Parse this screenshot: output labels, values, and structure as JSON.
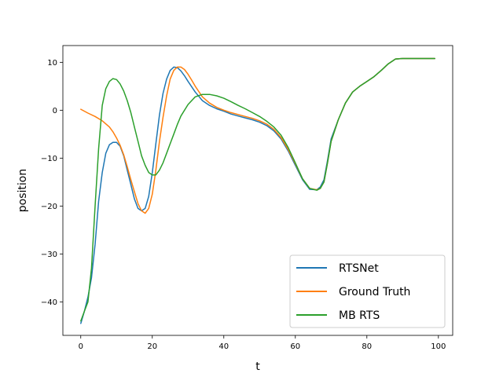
{
  "chart_data": {
    "type": "line",
    "title": "",
    "xlabel": "t",
    "ylabel": "position",
    "xlim": [
      -5,
      104
    ],
    "ylim": [
      -47,
      13.5
    ],
    "xticks": [
      0,
      20,
      40,
      60,
      80,
      100
    ],
    "yticks": [
      -40,
      -30,
      -20,
      -10,
      0,
      10
    ],
    "grid": false,
    "legend_position": "lower-right",
    "series": [
      {
        "name": "RTSNet",
        "color": "#1f77b4",
        "x": [
          0,
          1,
          2,
          3,
          4,
          5,
          6,
          7,
          8,
          9,
          10,
          11,
          12,
          13,
          14,
          15,
          16,
          17,
          18,
          19,
          20,
          21,
          22,
          23,
          24,
          25,
          26,
          27,
          28,
          29,
          30,
          32,
          34,
          36,
          38,
          40,
          42,
          44,
          46,
          48,
          50,
          52,
          54,
          56,
          58,
          60,
          62,
          64,
          66,
          67,
          68,
          69,
          70,
          72,
          74,
          76,
          78,
          80,
          82,
          84,
          86,
          88,
          90,
          92,
          94,
          96,
          98,
          99
        ],
        "y": [
          -44.5,
          -42,
          -39,
          -35,
          -28,
          -19,
          -13,
          -9,
          -7.2,
          -6.7,
          -6.7,
          -7.5,
          -9.5,
          -12.5,
          -15.5,
          -18.5,
          -20.5,
          -21,
          -20.5,
          -18,
          -13,
          -7,
          -1,
          3.5,
          6.5,
          8.3,
          9,
          8.9,
          8.2,
          7.2,
          6,
          3.8,
          2,
          1,
          0.3,
          -0.2,
          -0.8,
          -1.2,
          -1.6,
          -2,
          -2.5,
          -3.2,
          -4.3,
          -6,
          -8.5,
          -11.5,
          -14.5,
          -16.5,
          -16.6,
          -16,
          -14.5,
          -10.5,
          -6,
          -2,
          1.5,
          3.8,
          5,
          6,
          7,
          8.3,
          9.7,
          10.7,
          10.8,
          10.8,
          10.8,
          10.8,
          10.8,
          10.8
        ]
      },
      {
        "name": "Ground Truth",
        "color": "#ff7f0e",
        "x": [
          0,
          2,
          4,
          6,
          8,
          9,
          10,
          11,
          12,
          13,
          14,
          15,
          16,
          17,
          18,
          19,
          20,
          21,
          22,
          23,
          24,
          25,
          26,
          27,
          28,
          29,
          30,
          31,
          32,
          34,
          36,
          38,
          40,
          42,
          44,
          46,
          48,
          50,
          52,
          54,
          56,
          58,
          60,
          62,
          64,
          66,
          67,
          68,
          69,
          70,
          72,
          74,
          76,
          78,
          80,
          82,
          84,
          86,
          88,
          90,
          92,
          94,
          96,
          98,
          99
        ],
        "y": [
          0.2,
          -0.6,
          -1.3,
          -2.2,
          -3.5,
          -4.5,
          -5.8,
          -7.3,
          -9.3,
          -11.8,
          -14.5,
          -17,
          -19.5,
          -21,
          -21.5,
          -20.5,
          -17.5,
          -12.5,
          -6.5,
          -1.5,
          3,
          6.5,
          8.3,
          9,
          9,
          8.5,
          7.5,
          6.3,
          5,
          2.8,
          1.5,
          0.6,
          0,
          -0.5,
          -0.9,
          -1.3,
          -1.7,
          -2.2,
          -2.9,
          -4,
          -5.7,
          -8.2,
          -11.2,
          -14.3,
          -16.3,
          -16.6,
          -16.3,
          -15,
          -11,
          -6.5,
          -2,
          1.5,
          3.8,
          5,
          6,
          7,
          8.3,
          9.7,
          10.7,
          10.8,
          10.8,
          10.8,
          10.8,
          10.8,
          10.8
        ]
      },
      {
        "name": "MB RTS",
        "color": "#2ca02c",
        "x": [
          0,
          1,
          2,
          3,
          4,
          5,
          6,
          7,
          8,
          9,
          10,
          11,
          12,
          13,
          14,
          15,
          16,
          17,
          18,
          19,
          20,
          21,
          22,
          23,
          24,
          25,
          26,
          27,
          28,
          30,
          32,
          34,
          36,
          38,
          40,
          42,
          44,
          46,
          48,
          50,
          52,
          54,
          56,
          58,
          60,
          62,
          64,
          66,
          67,
          68,
          69,
          70,
          72,
          74,
          76,
          78,
          80,
          82,
          84,
          86,
          88,
          90,
          92,
          94,
          96,
          98,
          99
        ],
        "y": [
          -44,
          -42,
          -40,
          -33,
          -20,
          -8,
          1,
          4.5,
          6,
          6.6,
          6.4,
          5.5,
          4,
          2,
          -0.5,
          -3.5,
          -6.5,
          -9.5,
          -11.5,
          -13,
          -13.5,
          -13.5,
          -12.5,
          -11,
          -9,
          -7,
          -5,
          -3,
          -1.2,
          1.2,
          2.8,
          3.3,
          3.3,
          3,
          2.5,
          1.8,
          1,
          0.3,
          -0.5,
          -1.3,
          -2.3,
          -3.5,
          -5.2,
          -7.8,
          -11,
          -14.3,
          -16.3,
          -16.7,
          -16.3,
          -15,
          -11,
          -6.5,
          -2,
          1.5,
          3.8,
          5,
          6,
          7,
          8.3,
          9.7,
          10.7,
          10.8,
          10.8,
          10.8,
          10.8,
          10.8,
          10.8
        ]
      }
    ]
  }
}
